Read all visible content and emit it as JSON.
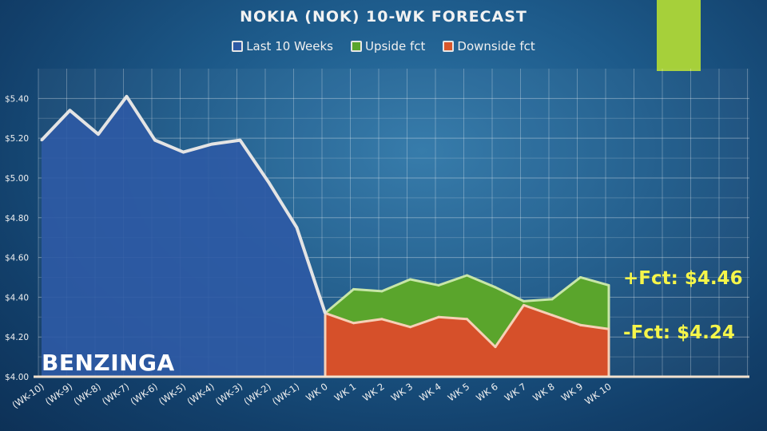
{
  "chart_data": {
    "type": "area",
    "title": "NOKIA (NOK) 10-WK FORECAST",
    "categories": [
      "(WK-10)",
      "(WK-9)",
      "(WK-8)",
      "(WK-7)",
      "(WK-6)",
      "(WK-5)",
      "(WK-4)",
      "(WK-3)",
      "(WK-2)",
      "(WK-1)",
      "WK 0",
      "WK 1",
      "WK 2",
      "WK 3",
      "WK 4",
      "WK 5",
      "WK 6",
      "WK 7",
      "WK 8",
      "WK 9",
      "WK 10"
    ],
    "series": [
      {
        "name": "Last 10 Weeks",
        "color": "#2e5aa5",
        "values": [
          5.19,
          5.34,
          5.22,
          5.41,
          5.19,
          5.13,
          5.17,
          5.19,
          4.98,
          4.75,
          4.32,
          null,
          null,
          null,
          null,
          null,
          null,
          null,
          null,
          null,
          null
        ]
      },
      {
        "name": "Upside fct",
        "color": "#5aa52c",
        "values": [
          null,
          null,
          null,
          null,
          null,
          null,
          null,
          null,
          null,
          null,
          4.32,
          4.44,
          4.43,
          4.49,
          4.46,
          4.51,
          4.45,
          4.38,
          4.39,
          4.5,
          4.46
        ]
      },
      {
        "name": "Downside fct",
        "color": "#d9562a",
        "values": [
          null,
          null,
          null,
          null,
          null,
          null,
          null,
          null,
          null,
          null,
          4.32,
          4.27,
          4.29,
          4.25,
          4.3,
          4.29,
          4.15,
          4.36,
          4.31,
          4.26,
          4.24
        ]
      }
    ],
    "y_ticks": [
      "$4.00",
      "$4.20",
      "$4.40",
      "$4.60",
      "$4.80",
      "$5.00",
      "$5.20",
      "$5.40"
    ],
    "ylim": [
      4.0,
      5.55
    ],
    "grid": true,
    "legend_position": "top-center",
    "annotations": {
      "upside": "+Fct: $4.46",
      "downside": "-Fct: $4.24"
    }
  },
  "brand": {
    "logo_text": "BENZINGA"
  }
}
